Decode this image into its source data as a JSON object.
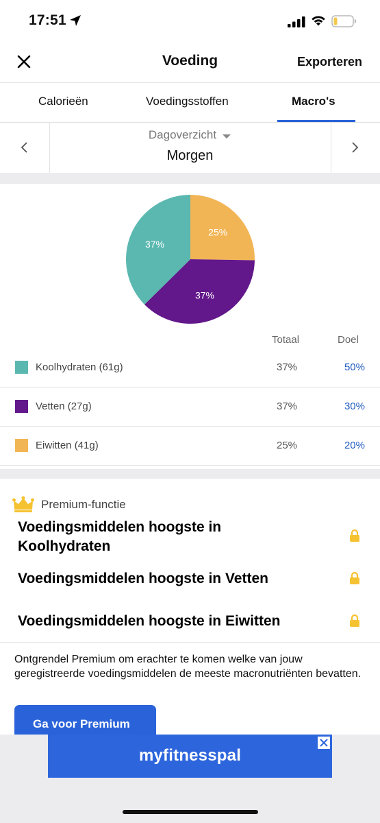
{
  "status_bar": {
    "time": "17:51"
  },
  "nav": {
    "title": "Voeding",
    "export_label": "Exporteren"
  },
  "tabs": [
    {
      "label": "Calorieën",
      "active": false
    },
    {
      "label": "Voedingsstoffen",
      "active": false
    },
    {
      "label": "Macro's",
      "active": true
    }
  ],
  "day_selector": {
    "mode": "Dagoverzicht",
    "day": "Morgen"
  },
  "table": {
    "total_header": "Totaal",
    "goal_header": "Doel",
    "rows": [
      {
        "label": "Koolhydraten (61g)",
        "total": "37%",
        "goal": "50%",
        "color": "#5bb8b0"
      },
      {
        "label": "Vetten (27g)",
        "total": "37%",
        "goal": "30%",
        "color": "#62188a"
      },
      {
        "label": "Eiwitten (41g)",
        "total": "25%",
        "goal": "20%",
        "color": "#f2b556"
      }
    ]
  },
  "chart_data": {
    "type": "pie",
    "series": [
      {
        "name": "Eiwitten",
        "value": 25,
        "label": "25%",
        "color": "#f2b556"
      },
      {
        "name": "Vetten",
        "value": 37,
        "label": "37%",
        "color": "#62188a"
      },
      {
        "name": "Koolhydraten",
        "value": 37,
        "label": "37%",
        "color": "#5bb8b0"
      }
    ]
  },
  "premium": {
    "label": "Premium-functie",
    "features": [
      "Voedingsmiddelen hoogste in Koolhydraten",
      "Voedingsmiddelen hoogste in Vetten",
      "Voedingsmiddelen hoogste in Eiwitten"
    ],
    "description": "Ontgrendel Premium om erachter te komen welke van jouw geregistreerde voedingsmiddelen de meeste macronutriënten bevatten.",
    "cta_label": "Ga voor Premium"
  },
  "ad": {
    "text": "myfitnesspal"
  },
  "colors": {
    "accent": "#2a63d9",
    "goal_text": "#1f5bbf",
    "gold": "#f5c231"
  }
}
